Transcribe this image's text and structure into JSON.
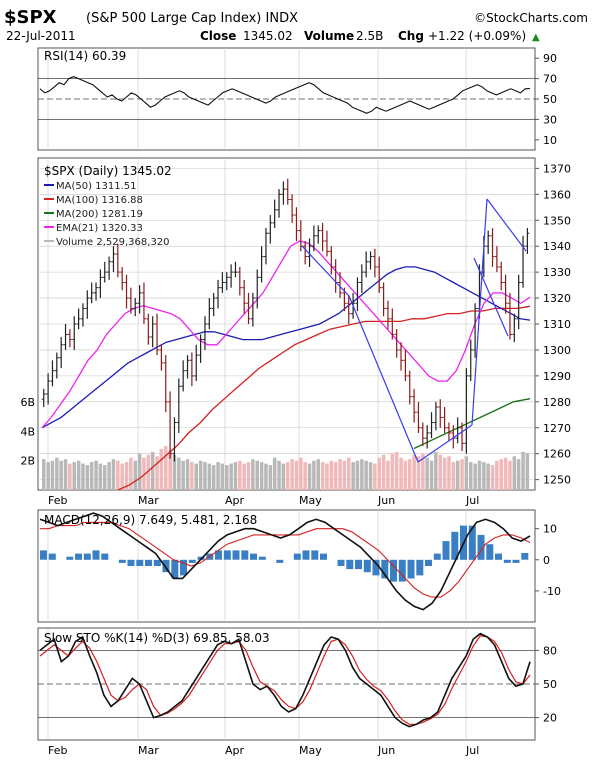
{
  "header": {
    "symbol": "$SPX",
    "name": "(S&P 500 Large Cap Index) INDX",
    "brand": "©StockCharts.com",
    "date": "22-Jul-2011",
    "close_label": "Close",
    "close_value": "1345.02",
    "volume_label": "Volume",
    "volume_value": "2.5B",
    "chg_label": "Chg",
    "chg_value": "+1.22 (+0.09%)",
    "chg_arrow": "▲"
  },
  "colors": {
    "price_up": "#222222",
    "price_down": "#8b1a1a",
    "ma50": "#1c1cb4",
    "ma100": "#d42020",
    "ma200": "#187018",
    "ema21": "#ee22ee",
    "volume_up": "#b8b8b8",
    "volume_down": "#f0b8b8",
    "trendline": "#3b3bf0",
    "macd_hist": "#3a7fc4",
    "grid": "#c8c8c8"
  },
  "chart_data": [
    {
      "type": "line",
      "panel": "rsi",
      "title": "RSI(14) 60.39",
      "y_ticks": [
        90,
        70,
        50,
        30,
        10
      ],
      "ylim": [
        0,
        100
      ],
      "reference_lines": [
        70,
        50,
        30
      ],
      "series": [
        {
          "name": "RSI(14)",
          "values": [
            60,
            56,
            58,
            62,
            66,
            64,
            70,
            72,
            70,
            68,
            66,
            64,
            60,
            56,
            52,
            54,
            50,
            48,
            52,
            56,
            54,
            50,
            46,
            42,
            44,
            48,
            52,
            54,
            56,
            58,
            56,
            52,
            50,
            48,
            46,
            44,
            48,
            52,
            56,
            58,
            60,
            58,
            56,
            54,
            52,
            50,
            48,
            46,
            48,
            52,
            54,
            56,
            58,
            60,
            62,
            64,
            66,
            64,
            60,
            56,
            54,
            52,
            50,
            48,
            46,
            42,
            40,
            38,
            36,
            38,
            42,
            40,
            38,
            40,
            42,
            44,
            46,
            48,
            46,
            44,
            42,
            40,
            42,
            44,
            46,
            48,
            50,
            54,
            58,
            60,
            62,
            64,
            62,
            58,
            56,
            54,
            56,
            58,
            60,
            58,
            56,
            60,
            60.39
          ]
        }
      ],
      "grid": true
    },
    {
      "type": "bar",
      "panel": "price",
      "title": "$SPX (Daily) 1345.02",
      "y_ticks": [
        1370,
        1360,
        1350,
        1340,
        1330,
        1320,
        1310,
        1300,
        1290,
        1280,
        1270,
        1260,
        1250
      ],
      "ylim": [
        1246,
        1374
      ],
      "volume_ticks": [
        "6B",
        "4B",
        "2B"
      ],
      "x_ticks": [
        "Feb",
        "Mar",
        "Apr",
        "May",
        "Jun",
        "Jul"
      ],
      "legend": [
        {
          "label": "MA(50) 1311.51",
          "color_key": "ma50"
        },
        {
          "label": "MA(100) 1316.88",
          "color_key": "ma100"
        },
        {
          "label": "MA(200) 1281.19",
          "color_key": "ma200"
        },
        {
          "label": "EMA(21) 1320.33",
          "color_key": "ema21"
        },
        {
          "label": "Volume 2,529,368,320",
          "color_key": "volume_up"
        }
      ],
      "close": [
        1283,
        1288,
        1292,
        1297,
        1302,
        1306,
        1304,
        1310,
        1312,
        1316,
        1320,
        1322,
        1324,
        1328,
        1330,
        1334,
        1337,
        1330,
        1326,
        1320,
        1316,
        1318,
        1322,
        1312,
        1305,
        1310,
        1300,
        1295,
        1280,
        1260,
        1272,
        1286,
        1292,
        1296,
        1290,
        1298,
        1304,
        1310,
        1316,
        1320,
        1324,
        1326,
        1328,
        1330,
        1330,
        1324,
        1318,
        1312,
        1320,
        1328,
        1336,
        1345,
        1349,
        1354,
        1360,
        1362,
        1358,
        1352,
        1346,
        1340,
        1336,
        1340,
        1344,
        1346,
        1342,
        1338,
        1332,
        1326,
        1322,
        1318,
        1314,
        1318,
        1326,
        1330,
        1334,
        1336,
        1332,
        1324,
        1316,
        1312,
        1306,
        1300,
        1296,
        1290,
        1282,
        1276,
        1270,
        1266,
        1268,
        1272,
        1278,
        1274,
        1270,
        1268,
        1266,
        1270,
        1264,
        1290,
        1300,
        1316,
        1330,
        1340,
        1344,
        1336,
        1332,
        1326,
        1318,
        1306,
        1312,
        1326,
        1340,
        1345.02
      ],
      "volume": [
        2.1,
        1.9,
        2.0,
        2.2,
        2.0,
        2.1,
        1.8,
        1.9,
        2.0,
        1.8,
        1.7,
        1.9,
        2.0,
        1.8,
        1.7,
        1.9,
        2.1,
        2.0,
        1.8,
        1.9,
        2.2,
        2.0,
        2.5,
        2.2,
        2.4,
        2.6,
        2.3,
        2.8,
        3.0,
        2.7,
        2.4,
        2.2,
        2.0,
        2.1,
        1.9,
        1.8,
        2.0,
        1.9,
        1.8,
        1.7,
        1.9,
        1.8,
        1.7,
        1.8,
        1.9,
        2.0,
        1.8,
        1.9,
        2.1,
        2.0,
        1.9,
        1.8,
        1.7,
        2.2,
        2.0,
        1.8,
        1.9,
        2.1,
        2.0,
        2.2,
        1.9,
        1.8,
        2.0,
        2.1,
        1.9,
        1.8,
        2.0,
        1.9,
        2.1,
        2.0,
        2.2,
        1.9,
        2.0,
        2.1,
        2.0,
        1.9,
        1.8,
        2.2,
        2.4,
        2.0,
        2.5,
        2.6,
        2.2,
        2.0,
        2.1,
        2.4,
        2.3,
        2.5,
        2.2,
        2.0,
        2.6,
        2.4,
        2.2,
        2.3,
        1.9,
        2.0,
        2.1,
        2.3,
        1.9,
        1.8,
        2.0,
        1.9,
        1.8,
        1.7,
        2.0,
        2.1,
        2.2,
        2.0,
        2.3,
        2.1,
        2.6,
        2.53
      ],
      "ma50": [
        1270,
        1272,
        1274,
        1277,
        1280,
        1283,
        1286,
        1289,
        1292,
        1295,
        1297,
        1299,
        1301,
        1303,
        1304,
        1305,
        1306,
        1307,
        1307,
        1306,
        1305,
        1304,
        1304,
        1304,
        1305,
        1306,
        1307,
        1308,
        1309,
        1310,
        1312,
        1314,
        1317,
        1320,
        1323,
        1326,
        1329,
        1331,
        1332,
        1332,
        1331,
        1330,
        1328,
        1326,
        1324,
        1322,
        1320,
        1318,
        1316,
        1314,
        1312,
        1311.51
      ],
      "ma100": [
        1246,
        1248,
        1251,
        1255,
        1259,
        1263,
        1268,
        1272,
        1277,
        1281,
        1285,
        1289,
        1293,
        1296,
        1299,
        1302,
        1304,
        1306,
        1308,
        1309,
        1310,
        1311,
        1311,
        1311,
        1311,
        1312,
        1312,
        1313,
        1314,
        1314,
        1315,
        1315,
        1316,
        1316,
        1316,
        1316.88
      ],
      "ma200": [
        1262,
        1265,
        1268,
        1271,
        1274,
        1277,
        1280,
        1281.19
      ],
      "ema21": [
        1270,
        1274,
        1279,
        1284,
        1290,
        1296,
        1300,
        1306,
        1310,
        1314,
        1316,
        1317,
        1316,
        1315,
        1314,
        1312,
        1308,
        1304,
        1302,
        1302,
        1306,
        1310,
        1314,
        1318,
        1322,
        1328,
        1334,
        1340,
        1342,
        1341,
        1338,
        1334,
        1330,
        1326,
        1322,
        1318,
        1314,
        1310,
        1306,
        1302,
        1298,
        1294,
        1290,
        1288,
        1288,
        1292,
        1300,
        1310,
        1318,
        1322,
        1322,
        1320,
        1318,
        1320.33
      ],
      "grid": true
    },
    {
      "type": "line",
      "panel": "macd",
      "title": "MACD(12,26,9) 7.649, 5.481, 2.168",
      "y_ticks": [
        10,
        0,
        -10
      ],
      "ylim": [
        -20,
        16
      ],
      "series": [
        {
          "name": "MACD(12,26,9)",
          "values": [
            13,
            12,
            11,
            12,
            13,
            14,
            15,
            14,
            12,
            10,
            8,
            6,
            4,
            2,
            -2,
            -6,
            -6,
            -3,
            0,
            3,
            6,
            8,
            9,
            10,
            10,
            9,
            8,
            7,
            8,
            10,
            12,
            13,
            12,
            10,
            8,
            6,
            4,
            1,
            -2,
            -6,
            -10,
            -13,
            -15,
            -16,
            -14,
            -10,
            -4,
            2,
            8,
            12,
            13,
            12,
            10,
            7,
            6,
            7.649
          ]
        },
        {
          "name": "Signal",
          "values": [
            10,
            10,
            11,
            11,
            11,
            12,
            12,
            12,
            12,
            11,
            10,
            8,
            6,
            4,
            2,
            0,
            -1,
            -2,
            -1,
            1,
            3,
            5,
            6,
            7,
            8,
            8,
            8,
            8,
            8,
            8,
            9,
            10,
            10,
            10,
            10,
            9,
            7,
            5,
            3,
            0,
            -3,
            -6,
            -9,
            -11,
            -12,
            -12,
            -10,
            -7,
            -3,
            1,
            5,
            7,
            8,
            8,
            7,
            5.481
          ]
        },
        {
          "name": "Histogram",
          "values": [
            3,
            2,
            0,
            1,
            2,
            2,
            3,
            2,
            0,
            -1,
            -2,
            -2,
            -2,
            -2,
            -4,
            -6,
            -5,
            -1,
            1,
            2,
            3,
            3,
            3,
            3,
            2,
            1,
            0,
            -1,
            0,
            2,
            3,
            3,
            2,
            0,
            -2,
            -3,
            -3,
            -4,
            -5,
            -6,
            -7,
            -7,
            -6,
            -5,
            -2,
            2,
            6,
            9,
            11,
            11,
            8,
            5,
            2,
            -1,
            -1,
            2.168
          ]
        }
      ],
      "grid": true
    },
    {
      "type": "line",
      "panel": "sto",
      "title": "Slow STO %K(14) %D(3) 69.85, 58.03",
      "y_ticks": [
        80,
        50,
        20
      ],
      "ylim": [
        0,
        100
      ],
      "reference_lines": [
        80,
        50,
        20
      ],
      "x_ticks": [
        "Feb",
        "Mar",
        "Apr",
        "May",
        "Jun",
        "Jul"
      ],
      "series": [
        {
          "name": "%K(14)",
          "values": [
            80,
            85,
            90,
            70,
            75,
            88,
            92,
            75,
            60,
            40,
            30,
            35,
            45,
            55,
            50,
            35,
            20,
            22,
            25,
            30,
            35,
            45,
            55,
            65,
            75,
            85,
            88,
            86,
            90,
            70,
            50,
            45,
            48,
            40,
            30,
            25,
            28,
            40,
            55,
            70,
            85,
            92,
            90,
            80,
            65,
            55,
            50,
            45,
            40,
            30,
            20,
            15,
            12,
            14,
            18,
            20,
            25,
            40,
            55,
            65,
            75,
            90,
            95,
            92,
            85,
            70,
            55,
            48,
            50,
            69.85
          ]
        },
        {
          "name": "%D(3)",
          "values": [
            75,
            80,
            85,
            80,
            75,
            82,
            88,
            82,
            70,
            55,
            40,
            35,
            38,
            45,
            50,
            45,
            30,
            22,
            24,
            28,
            33,
            40,
            50,
            60,
            70,
            80,
            86,
            86,
            88,
            80,
            65,
            52,
            48,
            44,
            36,
            30,
            28,
            34,
            45,
            60,
            75,
            88,
            90,
            85,
            75,
            62,
            54,
            48,
            44,
            36,
            26,
            18,
            14,
            14,
            16,
            19,
            23,
            32,
            46,
            58,
            70,
            84,
            93,
            92,
            88,
            78,
            63,
            52,
            50,
            58.03
          ]
        }
      ],
      "grid": true
    }
  ]
}
